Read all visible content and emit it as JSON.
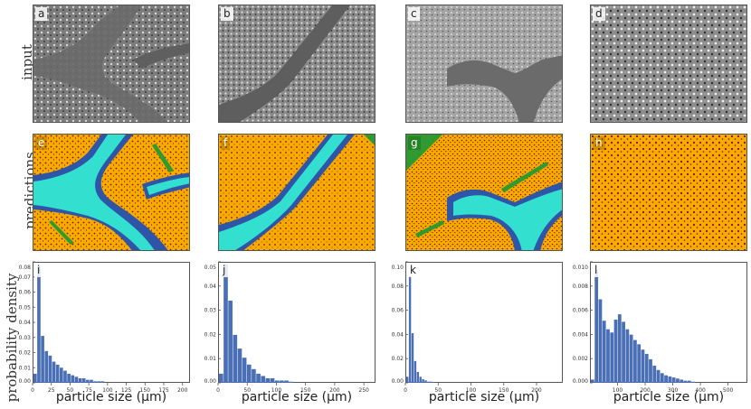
{
  "row_labels": {
    "input": "input",
    "predictions": "predictions",
    "probability": "probability density"
  },
  "panel_letters": [
    "a",
    "b",
    "c",
    "d",
    "e",
    "f",
    "g",
    "h",
    "i",
    "j",
    "k",
    "l"
  ],
  "colors": {
    "matrix": "#f5ab00",
    "particles": "#8b0f00",
    "channel": "#33e0d0",
    "boundary": "#2f55a8",
    "needles": "#2f9a2f",
    "bars": "#4a6fb5",
    "micrograph_bg": "#8e8e8e"
  },
  "xlabel": "particle size (μm)",
  "chart_data": [
    {
      "type": "bar",
      "panel": "i",
      "xlim": [
        0,
        210
      ],
      "ylim": [
        0,
        0.08
      ],
      "xticks": [
        "0",
        "25",
        "50",
        "75",
        "100",
        "125",
        "150",
        "175",
        "200"
      ],
      "yticks": [
        "0.00",
        "0.01",
        "0.02",
        "0.03",
        "0.04",
        "0.05",
        "0.06",
        "0.07",
        "0.08"
      ],
      "bin_width": 5,
      "values": [
        0.006,
        0.077,
        0.031,
        0.021,
        0.018,
        0.014,
        0.012,
        0.01,
        0.008,
        0.006,
        0.005,
        0.004,
        0.003,
        0.003,
        0.002,
        0.002,
        0.001,
        0.001,
        0.001
      ]
    },
    {
      "type": "bar",
      "panel": "j",
      "xlim": [
        0,
        270
      ],
      "ylim": [
        0,
        0.053
      ],
      "xticks": [
        "0",
        "50",
        "100",
        "150",
        "200",
        "250"
      ],
      "yticks": [
        "0.00",
        "0.01",
        "0.02",
        "0.03",
        "0.04",
        "0.05"
      ],
      "bin_width": 8,
      "values": [
        0.004,
        0.052,
        0.036,
        0.021,
        0.015,
        0.011,
        0.008,
        0.006,
        0.004,
        0.003,
        0.002,
        0.002,
        0.001,
        0.001,
        0.001,
        0.0005
      ]
    },
    {
      "type": "bar",
      "panel": "k",
      "xlim": [
        0,
        240
      ],
      "ylim": [
        0,
        0.1
      ],
      "xticks": [
        "0",
        "50",
        "100",
        "150",
        "200"
      ],
      "yticks": [
        "0.00",
        "0.02",
        "0.04",
        "0.06",
        "0.08",
        "0.10"
      ],
      "bin_width": 4,
      "values": [
        0.005,
        0.088,
        0.041,
        0.018,
        0.009,
        0.005,
        0.003,
        0.002,
        0.001,
        0.001,
        0.0005
      ]
    },
    {
      "type": "bar",
      "panel": "l",
      "xlim": [
        0,
        570
      ],
      "ylim": [
        0,
        0.0113
      ],
      "xticks": [
        "100",
        "200",
        "300",
        "400",
        "500"
      ],
      "yticks": [
        "0.000",
        "0.002",
        "0.004",
        "0.006",
        "0.008",
        "0.010"
      ],
      "bin_width": 14,
      "values": [
        0.0003,
        0.0105,
        0.0078,
        0.0058,
        0.005,
        0.0047,
        0.0059,
        0.0064,
        0.0057,
        0.005,
        0.0045,
        0.004,
        0.0036,
        0.0031,
        0.0027,
        0.0022,
        0.0016,
        0.0012,
        0.0009,
        0.0007,
        0.0006,
        0.0005,
        0.0004,
        0.0003,
        0.0002,
        0.0002,
        0.0001
      ]
    }
  ]
}
